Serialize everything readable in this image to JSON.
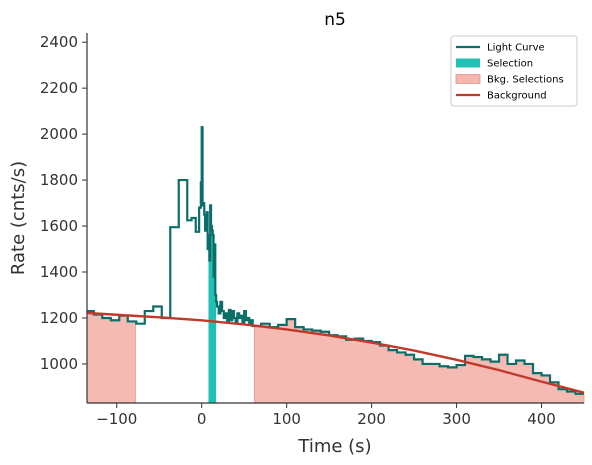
{
  "chart_data": {
    "type": "line",
    "title": "n5",
    "xlabel": "Time (s)",
    "ylabel": "Rate (cnts/s)",
    "xlim": [
      -135,
      450
    ],
    "ylim": [
      830,
      2440
    ],
    "xticks": [
      -100,
      0,
      100,
      200,
      300,
      400
    ],
    "xtick_labels": [
      "−100",
      "0",
      "100",
      "200",
      "300",
      "400"
    ],
    "yticks": [
      1000,
      1200,
      1400,
      1600,
      1800,
      2000,
      2200,
      2400
    ],
    "ytick_labels": [
      "1000",
      "1200",
      "1400",
      "1600",
      "1800",
      "2000",
      "2200",
      "2400"
    ],
    "grid": false,
    "legend_position": "top-right",
    "legend": [
      {
        "label": "Light Curve",
        "kind": "line",
        "color": "#0b6e69"
      },
      {
        "label": "Selection",
        "kind": "patch",
        "color": "#20c0b5"
      },
      {
        "label": "Bkg. Selections",
        "kind": "patch",
        "color": "#f4b6ae"
      },
      {
        "label": "Background",
        "kind": "line",
        "color": "#c0392b"
      }
    ],
    "light_curve": {
      "name": "Light Curve",
      "color": "#0b6e69",
      "x": [
        -135,
        -127,
        -117,
        -107,
        -97,
        -87,
        -77,
        -67,
        -57,
        -47,
        -37,
        -27,
        -17,
        -12,
        -7,
        -3,
        -1,
        0,
        1,
        2,
        3,
        4,
        5,
        6,
        7,
        8,
        9,
        10,
        11,
        12,
        13,
        14,
        15,
        16,
        17,
        18,
        20,
        22,
        24,
        26,
        28,
        30,
        32,
        34,
        36,
        38,
        40,
        42,
        44,
        46,
        48,
        50,
        52,
        54,
        56,
        58,
        60,
        70,
        80,
        90,
        100,
        110,
        120,
        130,
        140,
        150,
        160,
        170,
        180,
        190,
        200,
        210,
        220,
        230,
        240,
        250,
        260,
        270,
        280,
        290,
        300,
        310,
        320,
        330,
        340,
        350,
        360,
        370,
        380,
        390,
        400,
        410,
        420,
        430,
        440,
        450
      ],
      "y": [
        1230,
        1215,
        1200,
        1190,
        1210,
        1185,
        1175,
        1230,
        1250,
        1200,
        1595,
        1800,
        1625,
        1635,
        1575,
        1680,
        1790,
        2030,
        1690,
        1700,
        1650,
        1580,
        1620,
        1660,
        1500,
        1560,
        1450,
        1690,
        1600,
        1580,
        1560,
        1380,
        1520,
        1300,
        1270,
        1250,
        1220,
        1270,
        1230,
        1200,
        1220,
        1180,
        1235,
        1190,
        1230,
        1200,
        1180,
        1220,
        1200,
        1210,
        1180,
        1230,
        1190,
        1200,
        1170,
        1190,
        1165,
        1175,
        1160,
        1170,
        1195,
        1160,
        1150,
        1145,
        1140,
        1125,
        1120,
        1105,
        1110,
        1100,
        1095,
        1080,
        1060,
        1050,
        1040,
        1020,
        1000,
        1000,
        990,
        985,
        995,
        1035,
        1030,
        1020,
        1010,
        1040,
        1000,
        1015,
        1000,
        960,
        950,
        920,
        890,
        880,
        870,
        870
      ]
    },
    "selection": {
      "name": "Selection",
      "color": "#20c0b5",
      "x_start": 8,
      "x_end": 17
    },
    "bkg_selections": [
      {
        "x_start": -135,
        "x_end": -78
      },
      {
        "x_start": 62,
        "x_end": 450
      }
    ],
    "bkg_color": "#f4b6ae",
    "background": {
      "name": "Background",
      "color": "#c0392b",
      "x": [
        -135,
        -100,
        -50,
        0,
        50,
        100,
        150,
        200,
        250,
        300,
        350,
        400,
        450
      ],
      "y": [
        1222,
        1214,
        1203,
        1190,
        1172,
        1150,
        1124,
        1093,
        1058,
        1018,
        973,
        923,
        875
      ]
    }
  }
}
